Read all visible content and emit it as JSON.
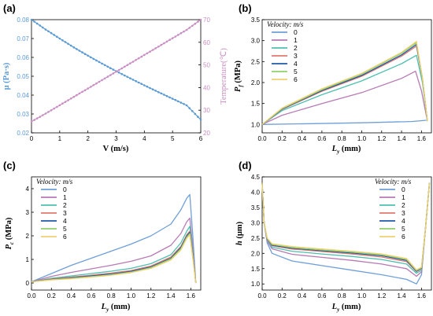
{
  "colors": {
    "s0": "#6f9fd8",
    "s1": "#b77ab4",
    "s2": "#4dbfb0",
    "s3": "#e07a6c",
    "s4": "#1f5aa8",
    "s5": "#8fd06a",
    "s6": "#f0d070",
    "mu": "#5b9bd5",
    "temp": "#c98ec3"
  },
  "chart_data": [
    {
      "panel": "(a)",
      "type": "line",
      "xlabel": "V (m/s)",
      "ylabel_left": "μ (Pa·s)",
      "ylabel_right": "Temperature(℃)",
      "xlim": [
        0,
        6
      ],
      "ylim_left": [
        0.02,
        0.08
      ],
      "ylim_right": [
        20,
        70
      ],
      "xticks": [
        "0",
        "1",
        "2",
        "3",
        "4",
        "5",
        "6"
      ],
      "yticks_left": [
        "0.02",
        "0.03",
        "0.04",
        "0.05",
        "0.06",
        "0.07",
        "0.08"
      ],
      "yticks_right": [
        "20",
        "30",
        "40",
        "50",
        "60",
        "70"
      ],
      "series": [
        {
          "axis": "left",
          "color": "mu",
          "x": [
            0,
            0.5,
            1,
            1.5,
            2,
            2.5,
            3,
            3.5,
            4,
            4.5,
            5,
            5.5,
            6
          ],
          "y": [
            0.08,
            0.0748,
            0.07,
            0.0653,
            0.0609,
            0.0567,
            0.0527,
            0.0489,
            0.0452,
            0.0416,
            0.0381,
            0.0346,
            0.027
          ]
        },
        {
          "axis": "right",
          "color": "temp",
          "x": [
            0,
            0.5,
            1,
            1.5,
            2,
            2.5,
            3,
            3.5,
            4,
            4.5,
            5,
            5.5,
            6
          ],
          "y": [
            25,
            28.5,
            32.2,
            35.9,
            39.6,
            43.3,
            47,
            50.7,
            54.4,
            58.1,
            61.8,
            65.5,
            70
          ]
        }
      ]
    },
    {
      "panel": "(b)",
      "type": "line",
      "xlabel_main": "L",
      "xlabel_sub": "y",
      "xlabel_unit": " (mm)",
      "ylabel_main": "P",
      "ylabel_sub": "f",
      "ylabel_unit": " (MPa)",
      "xlim": [
        0,
        1.7
      ],
      "ylim": [
        0.8,
        3.5
      ],
      "xticks": [
        "0.0",
        "0.2",
        "0.4",
        "0.6",
        "0.8",
        "1.0",
        "1.2",
        "1.4",
        "1.6"
      ],
      "yticks": [
        "1.0",
        "1.5",
        "2.0",
        "2.5",
        "3.0",
        "3.5"
      ],
      "legend_title": "Velocity:  m/s",
      "legend_placement": "top-left",
      "series": [
        {
          "name": "0",
          "color": "s0",
          "x": [
            0,
            0.5,
            1.0,
            1.5,
            1.65
          ],
          "y": [
            1.0,
            1.02,
            1.04,
            1.07,
            1.1
          ]
        },
        {
          "name": "1",
          "color": "s1",
          "x": [
            0,
            0.2,
            0.6,
            1.0,
            1.4,
            1.54,
            1.6,
            1.66
          ],
          "y": [
            1.0,
            1.22,
            1.5,
            1.76,
            2.1,
            2.27,
            1.8,
            1.08
          ]
        },
        {
          "name": "2",
          "color": "s2",
          "x": [
            0,
            0.2,
            0.6,
            1.0,
            1.4,
            1.55,
            1.61,
            1.66
          ],
          "y": [
            1.0,
            1.33,
            1.71,
            2.04,
            2.45,
            2.65,
            2.0,
            1.08
          ]
        },
        {
          "name": "3",
          "color": "s3",
          "x": [
            0,
            0.2,
            0.6,
            1.0,
            1.4,
            1.55,
            1.61,
            1.66
          ],
          "y": [
            1.0,
            1.36,
            1.79,
            2.15,
            2.63,
            2.87,
            2.1,
            1.08
          ]
        },
        {
          "name": "4",
          "color": "s4",
          "x": [
            0,
            0.2,
            0.6,
            1.0,
            1.4,
            1.55,
            1.61,
            1.66
          ],
          "y": [
            1.0,
            1.37,
            1.81,
            2.17,
            2.66,
            2.91,
            2.1,
            1.08
          ]
        },
        {
          "name": "5",
          "color": "s5",
          "x": [
            0,
            0.2,
            0.6,
            1.0,
            1.4,
            1.55,
            1.61,
            1.66
          ],
          "y": [
            1.0,
            1.38,
            1.83,
            2.2,
            2.7,
            2.95,
            2.1,
            1.08
          ]
        },
        {
          "name": "6",
          "color": "s6",
          "x": [
            0,
            0.2,
            0.6,
            1.0,
            1.4,
            1.55,
            1.61,
            1.66
          ],
          "y": [
            1.0,
            1.39,
            1.85,
            2.22,
            2.72,
            2.98,
            2.1,
            1.08
          ]
        }
      ]
    },
    {
      "panel": "(c)",
      "type": "line",
      "xlabel_main": "L",
      "xlabel_sub": "y",
      "xlabel_unit": " (mm)",
      "ylabel_main": "P",
      "ylabel_sub": "c",
      "ylabel_unit": " (MPa)",
      "xlim": [
        0,
        1.7
      ],
      "ylim": [
        -0.3,
        4.5
      ],
      "xticks": [
        "0.0",
        "0.2",
        "0.4",
        "0.6",
        "0.8",
        "1.0",
        "1.2",
        "1.4",
        "1.6"
      ],
      "yticks": [
        "0",
        "1",
        "2",
        "3",
        "4"
      ],
      "legend_title": "Velocity:  m/s",
      "legend_placement": "top-left",
      "series": [
        {
          "name": "0",
          "color": "s0",
          "x": [
            0,
            0.2,
            0.4,
            0.6,
            0.8,
            1.0,
            1.2,
            1.4,
            1.5,
            1.56,
            1.59,
            1.62,
            1.65
          ],
          "y": [
            0.05,
            0.4,
            0.75,
            1.05,
            1.35,
            1.65,
            2.0,
            2.5,
            3.1,
            3.6,
            3.75,
            2.0,
            0.0
          ]
        },
        {
          "name": "1",
          "color": "s1",
          "x": [
            0,
            0.2,
            0.4,
            0.6,
            0.8,
            1.0,
            1.2,
            1.4,
            1.5,
            1.56,
            1.59,
            1.62,
            1.65
          ],
          "y": [
            0.05,
            0.28,
            0.45,
            0.6,
            0.75,
            0.92,
            1.15,
            1.6,
            2.1,
            2.6,
            2.75,
            1.5,
            0.0
          ]
        },
        {
          "name": "2",
          "color": "s2",
          "x": [
            0,
            0.2,
            0.4,
            0.6,
            0.8,
            1.0,
            1.2,
            1.4,
            1.5,
            1.56,
            1.59,
            1.62,
            1.65
          ],
          "y": [
            0.05,
            0.2,
            0.3,
            0.4,
            0.5,
            0.62,
            0.82,
            1.2,
            1.7,
            2.2,
            2.4,
            1.3,
            0.0
          ]
        },
        {
          "name": "3",
          "color": "s3",
          "x": [
            0,
            0.2,
            0.4,
            0.6,
            0.8,
            1.0,
            1.2,
            1.4,
            1.5,
            1.56,
            1.59,
            1.62,
            1.65
          ],
          "y": [
            0.05,
            0.17,
            0.25,
            0.33,
            0.42,
            0.53,
            0.72,
            1.1,
            1.55,
            2.05,
            2.2,
            1.2,
            0.0
          ]
        },
        {
          "name": "4",
          "color": "s4",
          "x": [
            0,
            0.2,
            0.4,
            0.6,
            0.8,
            1.0,
            1.2,
            1.4,
            1.5,
            1.56,
            1.59,
            1.62,
            1.65
          ],
          "y": [
            0.05,
            0.15,
            0.22,
            0.3,
            0.38,
            0.49,
            0.68,
            1.05,
            1.5,
            2.0,
            2.15,
            1.15,
            0.0
          ]
        },
        {
          "name": "5",
          "color": "s5",
          "x": [
            0,
            0.2,
            0.4,
            0.6,
            0.8,
            1.0,
            1.2,
            1.4,
            1.5,
            1.56,
            1.59,
            1.62,
            1.65
          ],
          "y": [
            0.05,
            0.14,
            0.2,
            0.27,
            0.35,
            0.46,
            0.65,
            1.02,
            1.45,
            1.95,
            2.1,
            1.1,
            0.0
          ]
        },
        {
          "name": "6",
          "color": "s6",
          "x": [
            0,
            0.2,
            0.4,
            0.6,
            0.8,
            1.0,
            1.2,
            1.4,
            1.5,
            1.56,
            1.59,
            1.62,
            1.65
          ],
          "y": [
            0.05,
            0.13,
            0.18,
            0.25,
            0.33,
            0.44,
            0.62,
            0.98,
            1.4,
            1.9,
            2.05,
            1.05,
            0.0
          ]
        }
      ]
    },
    {
      "panel": "(d)",
      "type": "line",
      "xlabel_main": "L",
      "xlabel_sub": "y",
      "xlabel_unit": " (mm)",
      "ylabel_main": "h",
      "ylabel_sub": "",
      "ylabel_unit": " (μm)",
      "xlim": [
        0,
        1.7
      ],
      "ylim": [
        0.8,
        4.5
      ],
      "xticks": [
        "0.0",
        "0.2",
        "0.4",
        "0.6",
        "0.8",
        "1.0",
        "1.2",
        "1.4",
        "1.6"
      ],
      "yticks": [
        "1.0",
        "1.5",
        "2.0",
        "2.5",
        "3.0",
        "3.5",
        "4.0",
        "4.5"
      ],
      "legend_title": "Velocity:  m/s",
      "legend_placement": "top-right",
      "series": [
        {
          "name": "0",
          "color": "s0",
          "x": [
            0,
            0.02,
            0.05,
            0.1,
            0.3,
            0.6,
            0.9,
            1.2,
            1.45,
            1.55,
            1.6,
            1.64,
            1.68
          ],
          "y": [
            4.3,
            3.0,
            2.35,
            2.0,
            1.75,
            1.6,
            1.45,
            1.3,
            1.15,
            1.0,
            1.3,
            2.8,
            4.3
          ]
        },
        {
          "name": "1",
          "color": "s1",
          "x": [
            0,
            0.02,
            0.05,
            0.1,
            0.3,
            0.6,
            0.9,
            1.2,
            1.45,
            1.55,
            1.6,
            1.64,
            1.68
          ],
          "y": [
            4.3,
            3.0,
            2.4,
            2.15,
            1.97,
            1.87,
            1.77,
            1.65,
            1.5,
            1.25,
            1.4,
            2.8,
            4.3
          ]
        },
        {
          "name": "2",
          "color": "s2",
          "x": [
            0,
            0.02,
            0.05,
            0.1,
            0.3,
            0.6,
            0.9,
            1.2,
            1.45,
            1.55,
            1.6,
            1.64,
            1.68
          ],
          "y": [
            4.3,
            3.0,
            2.45,
            2.2,
            2.07,
            1.98,
            1.9,
            1.8,
            1.65,
            1.35,
            1.45,
            2.8,
            4.3
          ]
        },
        {
          "name": "3",
          "color": "s3",
          "x": [
            0,
            0.02,
            0.05,
            0.1,
            0.3,
            0.6,
            0.9,
            1.2,
            1.45,
            1.55,
            1.6,
            1.64,
            1.68
          ],
          "y": [
            4.3,
            3.0,
            2.47,
            2.25,
            2.14,
            2.06,
            1.98,
            1.88,
            1.73,
            1.4,
            1.5,
            2.8,
            4.3
          ]
        },
        {
          "name": "4",
          "color": "s4",
          "x": [
            0,
            0.02,
            0.05,
            0.1,
            0.3,
            0.6,
            0.9,
            1.2,
            1.45,
            1.55,
            1.6,
            1.64,
            1.68
          ],
          "y": [
            4.3,
            3.0,
            2.48,
            2.27,
            2.17,
            2.09,
            2.01,
            1.92,
            1.77,
            1.42,
            1.52,
            2.8,
            4.3
          ]
        },
        {
          "name": "5",
          "color": "s5",
          "x": [
            0,
            0.02,
            0.05,
            0.1,
            0.3,
            0.6,
            0.9,
            1.2,
            1.45,
            1.55,
            1.6,
            1.64,
            1.68
          ],
          "y": [
            4.3,
            3.0,
            2.49,
            2.29,
            2.19,
            2.11,
            2.04,
            1.95,
            1.8,
            1.44,
            1.53,
            2.8,
            4.3
          ]
        },
        {
          "name": "6",
          "color": "s6",
          "x": [
            0,
            0.02,
            0.05,
            0.1,
            0.3,
            0.6,
            0.9,
            1.2,
            1.45,
            1.55,
            1.6,
            1.64,
            1.68
          ],
          "y": [
            4.3,
            3.0,
            2.5,
            2.31,
            2.22,
            2.14,
            2.07,
            1.98,
            1.83,
            1.46,
            1.55,
            2.8,
            4.3
          ]
        }
      ]
    }
  ]
}
